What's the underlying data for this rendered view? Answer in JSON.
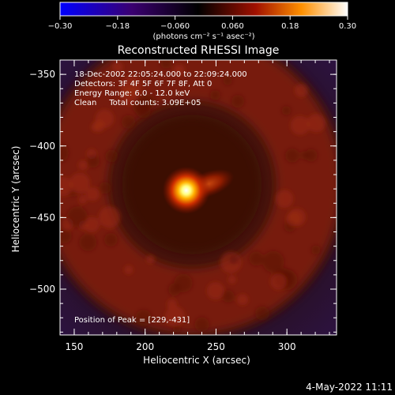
{
  "chart_data": {
    "type": "heatmap",
    "title": "Reconstructed RHESSI Image",
    "xlabel": "Heliocentric X (arcsec)",
    "ylabel": "Heliocentric Y (arcsec)",
    "xlim": [
      140,
      335
    ],
    "ylim": [
      -532,
      -340
    ],
    "x_ticks": [
      150,
      200,
      250,
      300
    ],
    "x_tick_labels": [
      "150",
      "200",
      "250",
      "300"
    ],
    "y_ticks": [
      -350,
      -400,
      -450,
      -500
    ],
    "y_tick_labels": [
      "−350",
      "−400",
      "−450",
      "−500"
    ],
    "colorbar": {
      "range": [
        -0.3,
        0.3
      ],
      "ticks": [
        -0.3,
        -0.18,
        -0.06,
        0.06,
        0.18,
        0.3
      ],
      "tick_labels": [
        "−0.30",
        "−0.18",
        "−0.060",
        "0.060",
        "0.18",
        "0.30"
      ],
      "unit_label": "(photons cm⁻² s⁻¹ asec⁻²)",
      "colormap": [
        "#0000ff",
        "#2a0080",
        "#000000",
        "#8b0000",
        "#ff8c00",
        "#ffffff"
      ]
    },
    "annotations": {
      "time_range": "18-Dec-2002 22:05:24.000 to 22:09:24.000",
      "detectors": "Detectors: 3F 4F 5F 6F 7F 8F, Att 0",
      "energy_range": "Energy Range: 6.0 - 12.0 keV",
      "clean": "Clean     Total counts: 3.09E+05",
      "peak": "Position of Peak = [229,-431]"
    },
    "source": {
      "peak_position": [
        229,
        -431
      ],
      "ring_center": [
        233,
        -427
      ],
      "ring_radius": 82
    }
  },
  "footer": {
    "timestamp": "4-May-2022 11:11"
  }
}
